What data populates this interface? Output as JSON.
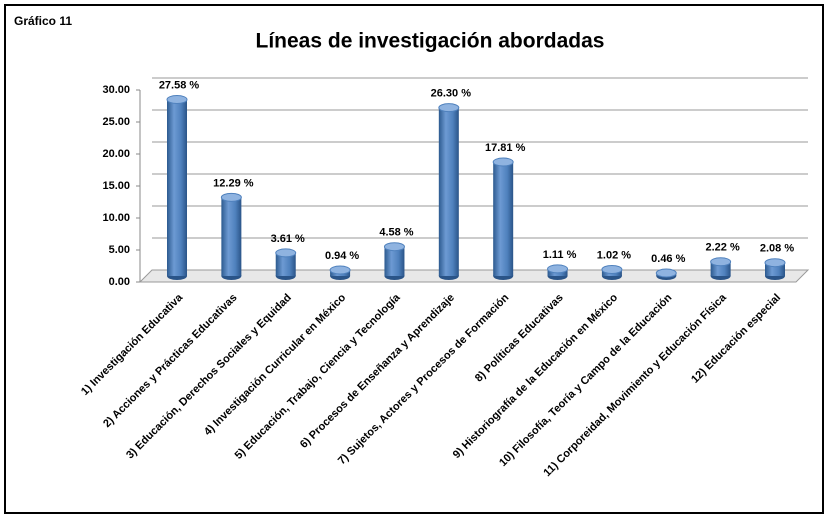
{
  "chart_data": {
    "type": "bar",
    "figure_label": "Gráfico 11",
    "title": "Líneas de investigación abordadas",
    "categories": [
      "1) Investigación Educativa",
      "2) Acciones y Prácticas Educativas",
      "3) Educación, Derechos Sociales y Equidad",
      "4) Investigación Curricular en México",
      "5) Educación, Trabajo, Ciencia y Tecnología",
      "6) Procesos de Enseñanza y Aprendizaje",
      "7) Sujetos, Actores y Procesos de Formación",
      "8) Políticas Educativas",
      "9) Historiografía de la Educación en México",
      "10) Filosofía, Teoría y Campo de la Educación",
      "11) Corporeidad, Movimiento y Educación Física",
      "12) Educación especial"
    ],
    "values": [
      27.58,
      12.29,
      3.61,
      0.94,
      4.58,
      26.3,
      17.81,
      1.11,
      1.02,
      0.46,
      2.22,
      2.08
    ],
    "value_labels": [
      "27.58 %",
      "12.29 %",
      "3.61 %",
      "0.94 %",
      "4.58 %",
      "26.30 %",
      "17.81 %",
      "1.11 %",
      "1.02 %",
      "0.46 %",
      "2.22 %",
      "2.08 %"
    ],
    "color": "#4f81bd",
    "ylim": [
      0,
      30
    ],
    "yticks": [
      {
        "value": 0,
        "label": "0.00"
      },
      {
        "value": 5,
        "label": "5.00"
      },
      {
        "value": 10,
        "label": "10.00"
      },
      {
        "value": 15,
        "label": "15.00"
      },
      {
        "value": 20,
        "label": "20.00"
      },
      {
        "value": 25,
        "label": "25.00"
      },
      {
        "value": 30,
        "label": "30.00"
      }
    ],
    "grid": true
  }
}
